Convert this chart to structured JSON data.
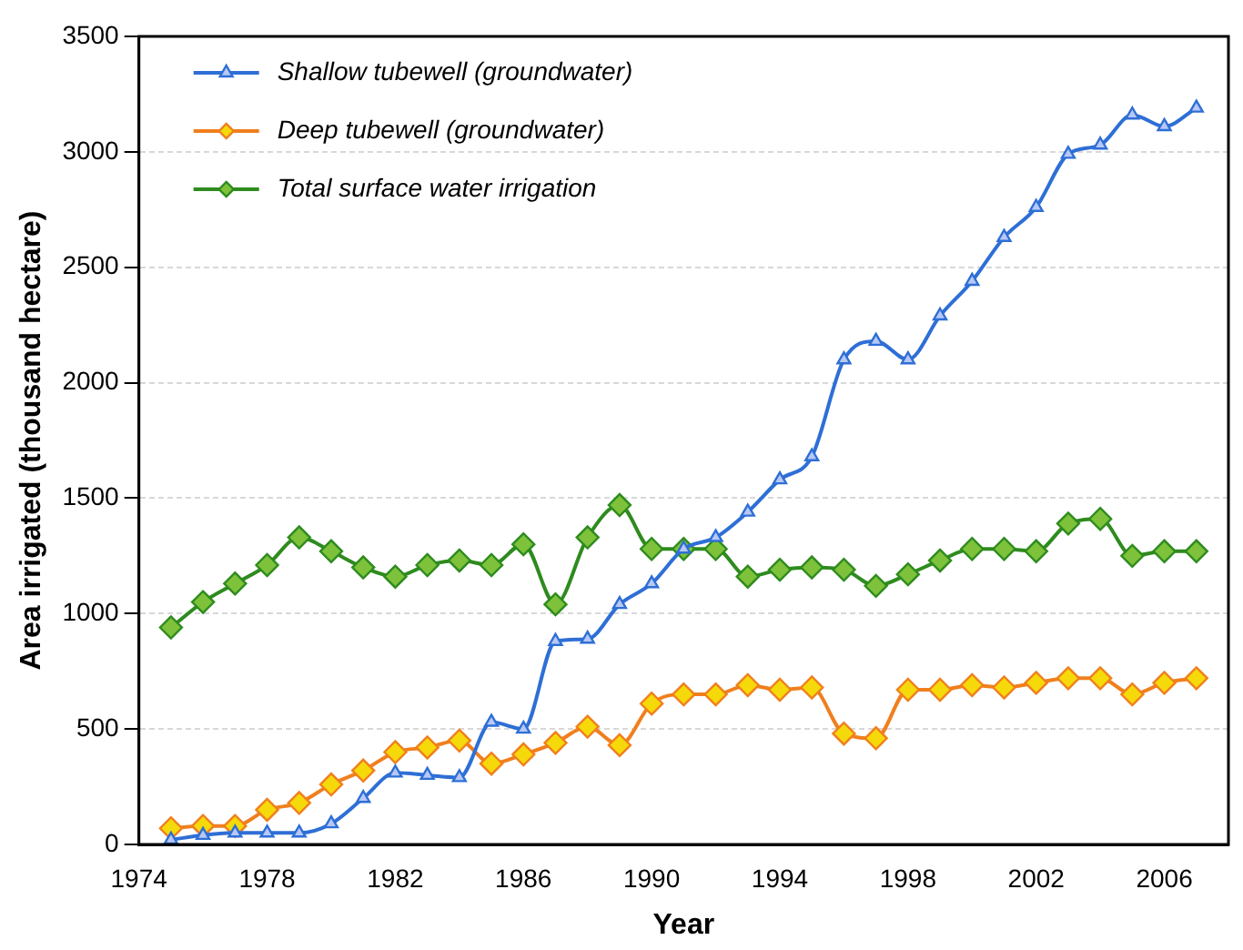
{
  "chart_data": {
    "type": "line",
    "xlabel": "Year",
    "ylabel": "Area irrigated (thousand hectare)",
    "x": [
      1975,
      1976,
      1977,
      1978,
      1979,
      1980,
      1981,
      1982,
      1983,
      1984,
      1985,
      1986,
      1987,
      1988,
      1989,
      1990,
      1991,
      1992,
      1993,
      1994,
      1995,
      1996,
      1997,
      1998,
      1999,
      2000,
      2001,
      2002,
      2003,
      2004,
      2005,
      2006,
      2007
    ],
    "xlim": [
      1974,
      2008
    ],
    "xticks": [
      1974,
      1978,
      1982,
      1986,
      1990,
      1994,
      1998,
      2002,
      2006
    ],
    "ylim": [
      0,
      3500
    ],
    "yticks": [
      0,
      500,
      1000,
      1500,
      2000,
      2500,
      3000,
      3500
    ],
    "grid": "y",
    "legend": "top left",
    "marker": "diamond",
    "series": [
      {
        "name": "Shallow tubewell (groundwater)",
        "color": "#2e6fd6",
        "marker": "triangle",
        "values": [
          20,
          40,
          50,
          50,
          50,
          90,
          200,
          310,
          300,
          290,
          530,
          500,
          880,
          890,
          1040,
          1130,
          1280,
          1330,
          1440,
          1580,
          1680,
          2100,
          2180,
          2100,
          2290,
          2440,
          2630,
          2760,
          2990,
          3030,
          3160,
          3110,
          3190
        ]
      },
      {
        "name": "Deep tubewell (groundwater)",
        "color": "#f07f1e",
        "values": [
          70,
          80,
          80,
          150,
          180,
          260,
          320,
          400,
          420,
          450,
          350,
          390,
          440,
          510,
          430,
          610,
          650,
          650,
          690,
          670,
          680,
          480,
          460,
          670,
          670,
          690,
          680,
          700,
          720,
          720,
          650,
          700,
          720
        ]
      },
      {
        "name": "Total surface water irrigation",
        "color": "#2e8b1e",
        "values": [
          940,
          1050,
          1130,
          1210,
          1330,
          1270,
          1200,
          1160,
          1210,
          1230,
          1210,
          1300,
          1040,
          1330,
          1470,
          1280,
          1280,
          1280,
          1160,
          1190,
          1200,
          1190,
          1120,
          1170,
          1230,
          1280,
          1280,
          1270,
          1390,
          1410,
          1250,
          1270,
          1270
        ]
      }
    ]
  }
}
